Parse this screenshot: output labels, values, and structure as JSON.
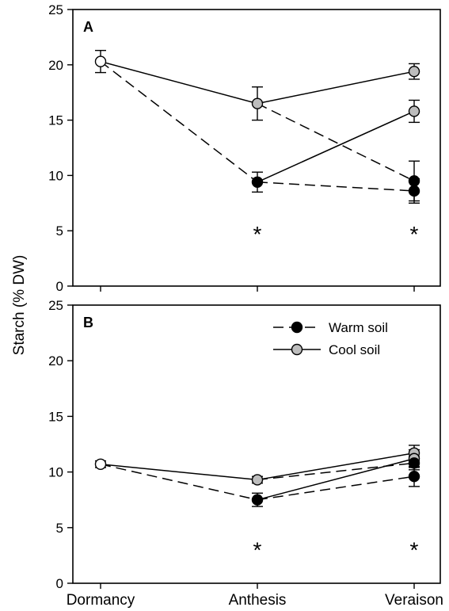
{
  "chart_data": {
    "type": "line",
    "ylabel": "Starch (% DW)",
    "categories": [
      "Dormancy",
      "Anthesis",
      "Veraison"
    ],
    "colors": {
      "warm": "#000000",
      "cool": "#bdbdbd",
      "start": "#ffffff"
    },
    "legend": {
      "placement": "top-right of panel B",
      "entries": [
        {
          "label": "Warm soil",
          "line": "dashed",
          "marker": "black-circle"
        },
        {
          "label": "Cool soil",
          "line": "solid",
          "marker": "gray-circle"
        }
      ]
    },
    "panels": [
      {
        "label": "A",
        "ylim": [
          0,
          25
        ],
        "yticks": [
          0,
          5,
          10,
          15,
          20,
          25
        ],
        "start": {
          "category": "Dormancy",
          "value": 20.3,
          "err": 1.0
        },
        "points": [
          {
            "category": "Anthesis",
            "series": "Cool soil",
            "value": 16.5,
            "err": 1.5
          },
          {
            "category": "Anthesis",
            "series": "Warm soil",
            "value": 9.4,
            "err": 0.9
          },
          {
            "category": "Veraison",
            "series": "Cool soil",
            "value": 19.4,
            "err": 0.7
          },
          {
            "category": "Veraison",
            "series": "Cool soil",
            "value": 15.8,
            "err": 1.0
          },
          {
            "category": "Veraison",
            "series": "Warm soil",
            "value": 9.5,
            "err": 1.8
          },
          {
            "category": "Veraison",
            "series": "Warm soil",
            "value": 8.6,
            "err": 1.1
          }
        ],
        "segments": [
          {
            "from": "start",
            "to": 0,
            "style": "solid"
          },
          {
            "from": 0,
            "to": 2,
            "style": "solid"
          },
          {
            "from": 0,
            "to": 4,
            "style": "dashed"
          },
          {
            "from": "start",
            "to": 1,
            "style": "dashed"
          },
          {
            "from": 1,
            "to": 3,
            "style": "solid"
          },
          {
            "from": 1,
            "to": 5,
            "style": "dashed"
          }
        ],
        "annotations": [
          {
            "category": "Anthesis",
            "y": 5.0,
            "text": "*"
          },
          {
            "category": "Veraison",
            "y": 5.0,
            "text": "*"
          }
        ]
      },
      {
        "label": "B",
        "ylim": [
          0,
          25
        ],
        "yticks": [
          0,
          5,
          10,
          15,
          20,
          25
        ],
        "start": {
          "category": "Dormancy",
          "value": 10.7,
          "err": 0.3
        },
        "points": [
          {
            "category": "Anthesis",
            "series": "Cool soil",
            "value": 9.3,
            "err": 0.3
          },
          {
            "category": "Anthesis",
            "series": "Warm soil",
            "value": 7.5,
            "err": 0.6
          },
          {
            "category": "Veraison",
            "series": "Cool soil",
            "value": 11.7,
            "err": 0.7
          },
          {
            "category": "Veraison",
            "series": "Cool soil",
            "value": 11.2,
            "err": 0.8
          },
          {
            "category": "Veraison",
            "series": "Warm soil",
            "value": 10.8,
            "err": 0.6
          },
          {
            "category": "Veraison",
            "series": "Warm soil",
            "value": 9.6,
            "err": 0.9
          }
        ],
        "segments": [
          {
            "from": "start",
            "to": 0,
            "style": "solid"
          },
          {
            "from": 0,
            "to": 2,
            "style": "solid"
          },
          {
            "from": 0,
            "to": 4,
            "style": "dashed"
          },
          {
            "from": "start",
            "to": 1,
            "style": "dashed"
          },
          {
            "from": 1,
            "to": 3,
            "style": "solid"
          },
          {
            "from": 1,
            "to": 5,
            "style": "dashed"
          }
        ],
        "annotations": [
          {
            "category": "Anthesis",
            "y": 3.3,
            "text": "*"
          },
          {
            "category": "Veraison",
            "y": 3.3,
            "text": "*"
          }
        ]
      }
    ]
  }
}
